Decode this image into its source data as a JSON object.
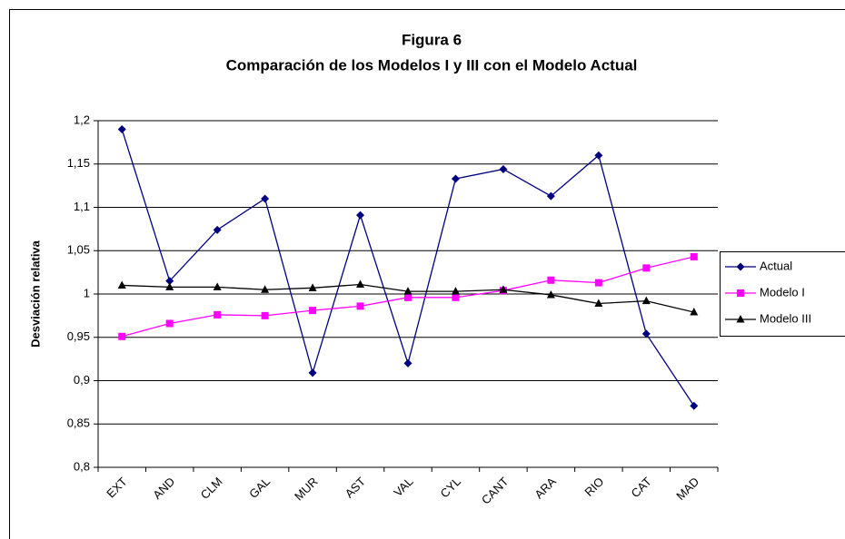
{
  "chart_data": {
    "type": "line",
    "title": "Figura 6",
    "subtitle": "Comparación de los Modelos I y III con el Modelo Actual",
    "y_label": "Desviación relativa",
    "categories": [
      "EXT",
      "AND",
      "CLM",
      "GAL",
      "MUR",
      "AST",
      "VAL",
      "CYL",
      "CANT",
      "ARA",
      "RIO",
      "CAT",
      "MAD"
    ],
    "series": [
      {
        "name": "Actual",
        "color": "#000080",
        "marker": "diamond",
        "values": [
          1.19,
          1.015,
          1.074,
          1.11,
          0.909,
          1.091,
          0.92,
          1.133,
          1.144,
          1.113,
          1.16,
          0.954,
          0.871
        ]
      },
      {
        "name": "Modelo I",
        "color": "#ff00ff",
        "marker": "square",
        "values": [
          0.951,
          0.966,
          0.976,
          0.975,
          0.981,
          0.986,
          0.996,
          0.996,
          1.004,
          1.016,
          1.013,
          1.03,
          1.043
        ]
      },
      {
        "name": "Modelo III",
        "color": "#000000",
        "marker": "triangle",
        "values": [
          1.01,
          1.008,
          1.008,
          1.005,
          1.007,
          1.011,
          1.003,
          1.003,
          1.005,
          0.999,
          0.989,
          0.992,
          0.979
        ]
      }
    ],
    "ylim": [
      0.8,
      1.2
    ],
    "yticks": [
      {
        "value": 0.8,
        "label": "0,8"
      },
      {
        "value": 0.85,
        "label": "0,85"
      },
      {
        "value": 0.9,
        "label": "0,9"
      },
      {
        "value": 0.95,
        "label": "0,95"
      },
      1,
      {
        "value": 1.05,
        "label": "1,05"
      },
      {
        "value": 1.1,
        "label": "1,1"
      },
      {
        "value": 1.15,
        "label": "1,15"
      },
      {
        "value": 1.2,
        "label": "1,2"
      }
    ],
    "grid": true,
    "legend": "right"
  }
}
